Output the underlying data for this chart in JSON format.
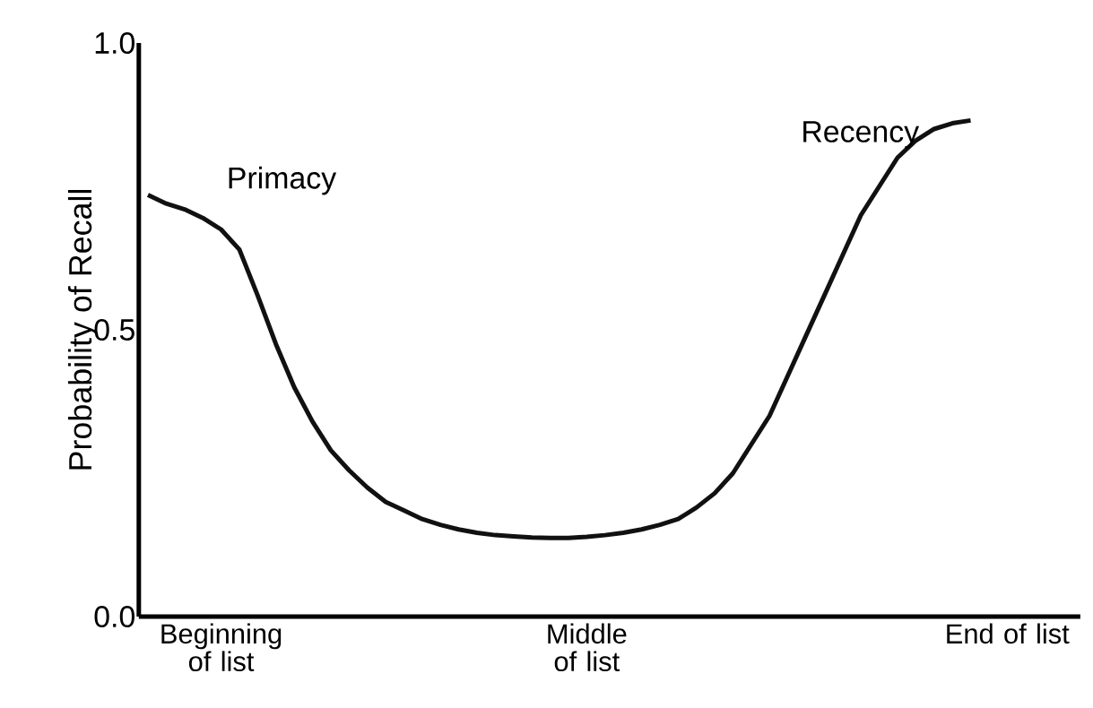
{
  "chart_data": {
    "type": "line",
    "ylabel": "Probability of Recall",
    "color": "#111111",
    "ylim": [
      0,
      1.0
    ],
    "yticks": [
      {
        "value": 0,
        "label": "0.0"
      },
      0.5,
      {
        "value": 1.0,
        "label": "1.0"
      }
    ],
    "categories": [
      null,
      null,
      null,
      null,
      "Beginning of list",
      null,
      null,
      null,
      null,
      null,
      null,
      null,
      null,
      null,
      null,
      null,
      null,
      null,
      null,
      null,
      null,
      null,
      null,
      null,
      "Middle of list",
      null,
      null,
      null,
      null,
      null,
      null,
      null,
      null,
      null,
      null,
      null,
      null,
      null,
      null,
      null,
      null,
      null,
      null,
      null,
      null,
      null,
      null,
      "End of list"
    ],
    "values": [
      0.735,
      0.72,
      0.71,
      0.695,
      0.675,
      0.64,
      0.56,
      0.475,
      0.4,
      0.34,
      0.29,
      0.255,
      0.225,
      0.2,
      0.185,
      0.17,
      0.16,
      0.152,
      0.146,
      0.142,
      0.14,
      0.138,
      0.137,
      0.137,
      0.139,
      0.142,
      0.146,
      0.152,
      0.16,
      0.17,
      0.19,
      0.215,
      0.25,
      0.3,
      0.35,
      0.42,
      0.49,
      0.56,
      0.63,
      0.7,
      0.75,
      0.8,
      0.83,
      0.85,
      0.86,
      0.865,
      null,
      null
    ],
    "annotations": [
      "Primacy",
      "Recency"
    ]
  }
}
